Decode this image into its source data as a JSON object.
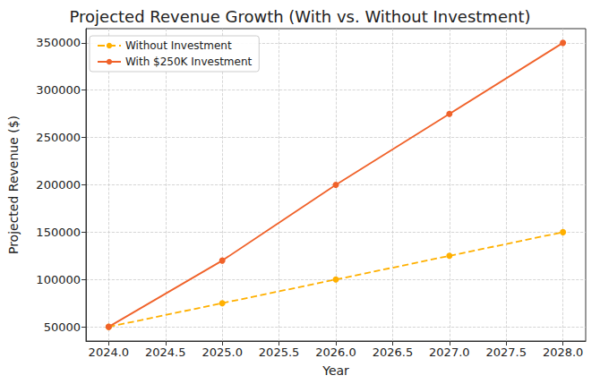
{
  "chart_data": {
    "type": "line",
    "title": "Projected Revenue Growth (With vs. Without Investment)",
    "x_label": "Year",
    "y_label": "Projected Revenue ($)",
    "x": [
      2024,
      2025,
      2026,
      2027,
      2028
    ],
    "series": [
      {
        "name": "Without Investment",
        "color": "#ffb000",
        "marker": "circle",
        "line_style": "dashed",
        "values": [
          50000,
          75000,
          100000,
          125000,
          150000
        ]
      },
      {
        "name": "With $250K Investment",
        "color": "#f0622a",
        "marker": "circle",
        "line_style": "solid",
        "values": [
          50000,
          120000,
          200000,
          275000,
          350000
        ]
      }
    ],
    "xlim": [
      2023.8,
      2028.2
    ],
    "xticks": [
      {
        "value": 2024,
        "label": "2024.0"
      },
      {
        "value": 2024.5,
        "label": "2024.5"
      },
      {
        "value": 2025,
        "label": "2025.0"
      },
      {
        "value": 2025.5,
        "label": "2025.5"
      },
      {
        "value": 2026,
        "label": "2026.0"
      },
      {
        "value": 2026.5,
        "label": "2026.5"
      },
      {
        "value": 2027,
        "label": "2027.0"
      },
      {
        "value": 2027.5,
        "label": "2027.5"
      },
      {
        "value": 2028,
        "label": "2028.0"
      }
    ],
    "ylim": [
      35000,
      365000
    ],
    "yticks": [
      50000,
      100000,
      150000,
      200000,
      250000,
      300000,
      350000
    ],
    "grid": true,
    "legend": "upper left"
  }
}
